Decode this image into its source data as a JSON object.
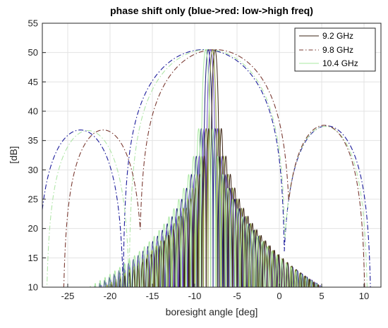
{
  "chart_data": {
    "type": "line",
    "title": "phase shift only (blue->red: low->high freq)",
    "xlabel": "boresight angle [deg]",
    "ylabel": "[dB]",
    "xlim": [
      -28,
      12
    ],
    "ylim": [
      10,
      55
    ],
    "xticks": [
      -25,
      -20,
      -15,
      -10,
      -5,
      0,
      5,
      10
    ],
    "yticks": [
      10,
      15,
      20,
      25,
      30,
      35,
      40,
      45,
      50,
      55
    ],
    "grid": true,
    "legend_position": "top-right",
    "legend": [
      {
        "label": "9.2 GHz",
        "color": "#3b2314",
        "dash": "solid"
      },
      {
        "label": "9.8 GHz",
        "color": "#7a3a32",
        "dash": "dashdot"
      },
      {
        "label": "10.4 GHz",
        "color": "#a8e8a0",
        "dash": "solid"
      }
    ],
    "mainbeams": [
      {
        "color": "#1a1a7a",
        "peak_x": -8.4,
        "peak_y": 50.5,
        "null_spacing": 0.57
      },
      {
        "color": "#6b4cc8",
        "peak_x": -8.1,
        "peak_y": 50.5,
        "null_spacing": 0.55
      },
      {
        "color": "#8a9a3a",
        "peak_x": -7.9,
        "peak_y": 50.5,
        "null_spacing": 0.53
      },
      {
        "color": "#3b2314",
        "peak_x": -7.6,
        "peak_y": 50.5,
        "null_spacing": 0.52
      },
      {
        "color": "#a8e8a0",
        "peak_x": -8.7,
        "peak_y": 50.5,
        "null_spacing": 0.58
      }
    ],
    "envelopes": [
      {
        "color": "#1a1a9a",
        "lobes": [
          {
            "center": -23.5,
            "peak": 36.8,
            "halfwidth": 5.2
          },
          {
            "center": -8.9,
            "peak": 50.5,
            "halfwidth": 9.6
          },
          {
            "center": 5.6,
            "peak": 37.5,
            "halfwidth": 5.3
          }
        ]
      },
      {
        "color": "#b0e6a8",
        "lobes": [
          {
            "center": -22.6,
            "peak": 36.7,
            "halfwidth": 5.0
          },
          {
            "center": -8.5,
            "peak": 50.5,
            "halfwidth": 9.3
          },
          {
            "center": 5.4,
            "peak": 37.4,
            "halfwidth": 5.1
          }
        ]
      },
      {
        "color": "#7a3a32",
        "lobes": [
          {
            "center": -20.8,
            "peak": 36.8,
            "halfwidth": 4.8
          },
          {
            "center": -7.6,
            "peak": 50.5,
            "halfwidth": 9.0
          },
          {
            "center": 5.3,
            "peak": 37.6,
            "halfwidth": 4.9
          }
        ]
      }
    ]
  }
}
